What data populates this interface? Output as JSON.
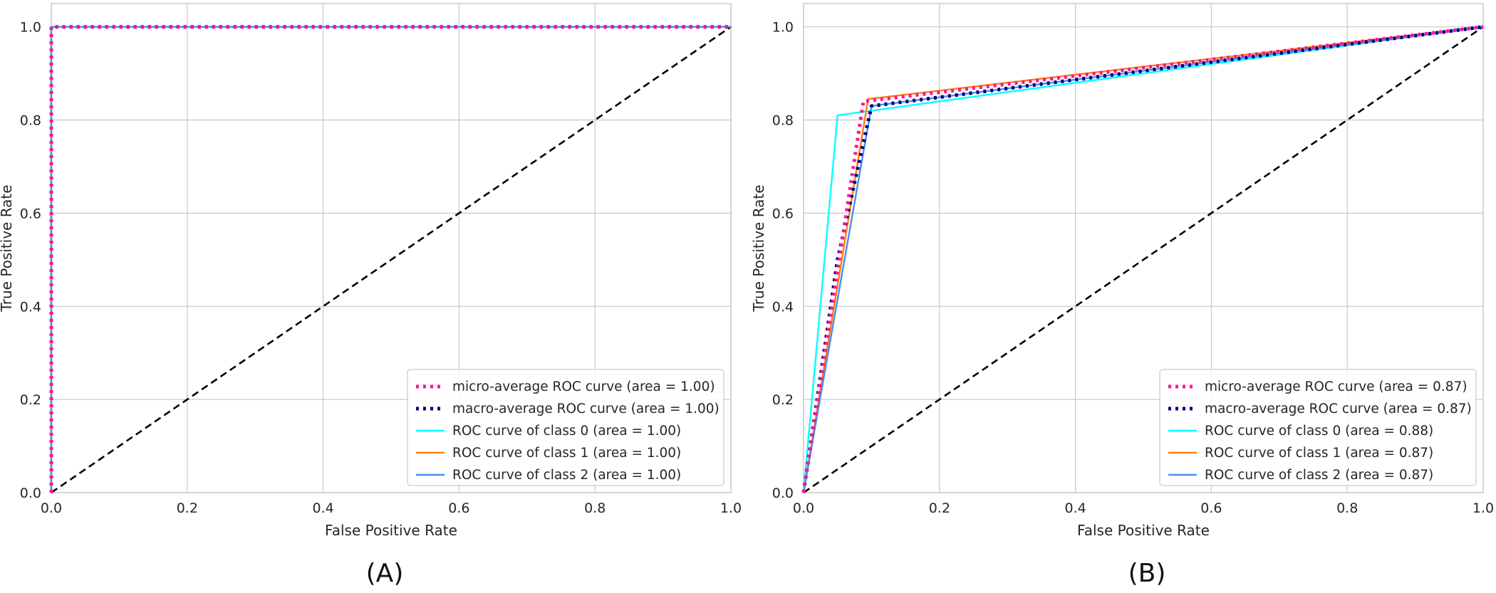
{
  "colors": {
    "micro": "#ff1493",
    "macro": "#000080",
    "class0": "#00ffff",
    "class1": "#ff7f0e",
    "class2": "#4a8ef0",
    "chance": "#000000",
    "grid": "#cccccc",
    "frame": "#cccccc"
  },
  "chart_data": [
    {
      "type": "line",
      "panel_label": "(A)",
      "xlabel": "False Positive Rate",
      "ylabel": "True Positive Rate",
      "xlim": [
        0.0,
        1.0
      ],
      "ylim": [
        0.0,
        1.05
      ],
      "xticks": [
        "0.0",
        "0.2",
        "0.4",
        "0.6",
        "0.8",
        "1.0"
      ],
      "yticks": [
        "0.0",
        "0.2",
        "0.4",
        "0.6",
        "0.8",
        "1.0"
      ],
      "grid": true,
      "legend_position": "lower-right",
      "series": [
        {
          "key": "micro",
          "name": "micro-average ROC curve (area = 1.00)",
          "style": "dotted",
          "x": [
            0.0,
            0.0,
            1.0
          ],
          "y": [
            0.0,
            1.0,
            1.0
          ]
        },
        {
          "key": "macro",
          "name": "macro-average ROC curve (area = 1.00)",
          "style": "dotted",
          "x": [
            0.0,
            0.0,
            1.0
          ],
          "y": [
            0.0,
            1.0,
            1.0
          ]
        },
        {
          "key": "class0",
          "name": "ROC curve of class 0 (area = 1.00)",
          "style": "solid",
          "x": [
            0.0,
            0.0,
            1.0
          ],
          "y": [
            0.0,
            1.0,
            1.0
          ]
        },
        {
          "key": "class1",
          "name": "ROC curve of class 1 (area = 1.00)",
          "style": "solid",
          "x": [
            0.0,
            0.0,
            1.0
          ],
          "y": [
            0.0,
            1.0,
            1.0
          ]
        },
        {
          "key": "class2",
          "name": "ROC curve of class 2 (area = 1.00)",
          "style": "solid",
          "x": [
            0.0,
            0.0,
            1.0
          ],
          "y": [
            0.0,
            1.0,
            1.0
          ]
        }
      ],
      "chance_line": {
        "x": [
          0.0,
          1.0
        ],
        "y": [
          0.0,
          1.0
        ]
      }
    },
    {
      "type": "line",
      "panel_label": "(B)",
      "xlabel": "False Positive Rate",
      "ylabel": "True Positive Rate",
      "xlim": [
        0.0,
        1.0
      ],
      "ylim": [
        0.0,
        1.05
      ],
      "xticks": [
        "0.0",
        "0.2",
        "0.4",
        "0.6",
        "0.8",
        "1.0"
      ],
      "yticks": [
        "0.0",
        "0.2",
        "0.4",
        "0.6",
        "0.8",
        "1.0"
      ],
      "grid": true,
      "legend_position": "lower-right",
      "series": [
        {
          "key": "micro",
          "name": "micro-average ROC curve (area = 0.87)",
          "style": "dotted",
          "x": [
            0.0,
            0.088,
            1.0
          ],
          "y": [
            0.0,
            0.84,
            1.0
          ]
        },
        {
          "key": "macro",
          "name": "macro-average ROC curve (area = 0.87)",
          "style": "dotted",
          "x": [
            0.0,
            0.05,
            0.1,
            1.0
          ],
          "y": [
            0.0,
            0.5,
            0.83,
            1.0
          ]
        },
        {
          "key": "class0",
          "name": "ROC curve of class 0 (area = 0.88)",
          "style": "solid",
          "x": [
            0.0,
            0.05,
            1.0
          ],
          "y": [
            0.0,
            0.81,
            1.0
          ]
        },
        {
          "key": "class1",
          "name": "ROC curve of class 1 (area = 0.87)",
          "style": "solid",
          "x": [
            0.0,
            0.095,
            1.0
          ],
          "y": [
            0.0,
            0.845,
            1.0
          ]
        },
        {
          "key": "class2",
          "name": "ROC curve of class 2 (area = 0.87)",
          "style": "solid",
          "x": [
            0.0,
            0.1,
            1.0
          ],
          "y": [
            0.0,
            0.83,
            1.0
          ]
        }
      ],
      "chance_line": {
        "x": [
          0.0,
          1.0
        ],
        "y": [
          0.0,
          1.0
        ]
      }
    }
  ]
}
